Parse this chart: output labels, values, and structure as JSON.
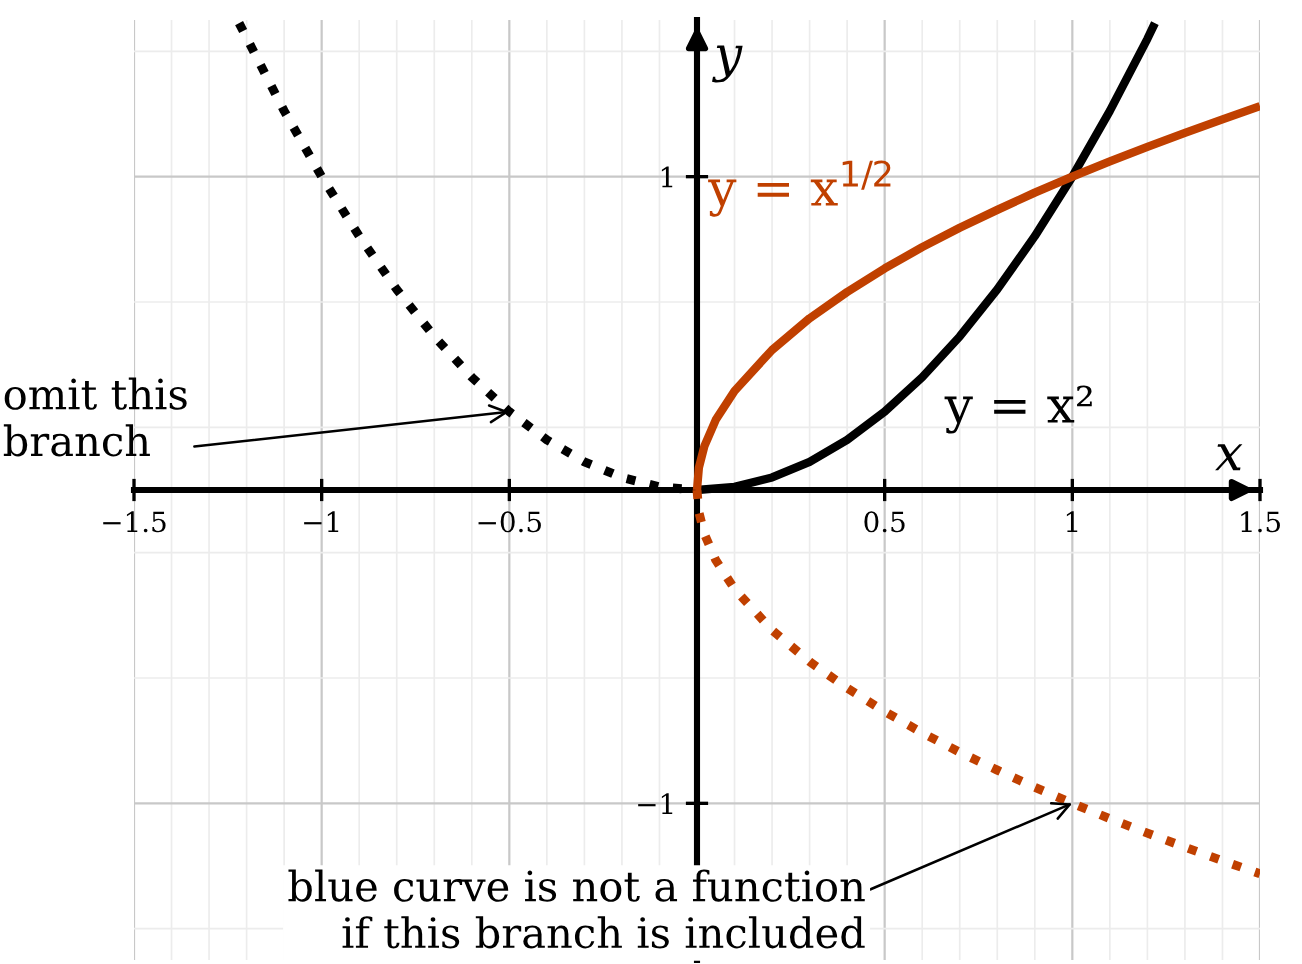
{
  "chart_data": {
    "type": "line",
    "xlabel": "x",
    "ylabel": "y",
    "xlim": [
      -1.5,
      1.5
    ],
    "ylim": [
      -1.5,
      1.5
    ],
    "xticks": [
      {
        "value": -1.5,
        "label": "−1.5"
      },
      {
        "value": -1,
        "label": "−1"
      },
      {
        "value": -0.5,
        "label": "−0.5"
      },
      0.5,
      1,
      1.5
    ],
    "yticks": [
      {
        "value": -1,
        "label": "−1"
      },
      1
    ],
    "grid": true,
    "marker": "none",
    "series": [
      {
        "color": "#000000",
        "line_style": "solid",
        "x": [
          0,
          0.1,
          0.2,
          0.3,
          0.4,
          0.5,
          0.6,
          0.7,
          0.8,
          0.9,
          1,
          1.1,
          1.2,
          1.22
        ],
        "values": [
          0,
          0.01,
          0.04,
          0.09,
          0.16,
          0.25,
          0.36,
          0.49,
          0.64,
          0.81,
          1,
          1.21,
          1.44,
          1.49
        ]
      },
      {
        "color": "#000000",
        "line_style": "dotted",
        "x": [
          -1.22,
          -1.1,
          -1,
          -0.9,
          -0.8,
          -0.7,
          -0.6,
          -0.5,
          -0.4,
          -0.3,
          -0.2,
          -0.1,
          0
        ],
        "values": [
          1.49,
          1.21,
          1,
          0.81,
          0.64,
          0.49,
          0.36,
          0.25,
          0.16,
          0.09,
          0.04,
          0.01,
          0
        ]
      },
      {
        "color": "#c04000",
        "line_style": "solid",
        "x": [
          0,
          0.005,
          0.02,
          0.05,
          0.1,
          0.2,
          0.3,
          0.4,
          0.5,
          0.6,
          0.7,
          0.8,
          0.9,
          1,
          1.1,
          1.2,
          1.3,
          1.4,
          1.5
        ],
        "values": [
          0,
          0.071,
          0.141,
          0.224,
          0.316,
          0.447,
          0.548,
          0.632,
          0.707,
          0.775,
          0.837,
          0.894,
          0.949,
          1,
          1.049,
          1.095,
          1.14,
          1.183,
          1.225
        ]
      },
      {
        "color": "#c04000",
        "line_style": "dotted",
        "x": [
          0,
          0.005,
          0.02,
          0.05,
          0.1,
          0.2,
          0.3,
          0.4,
          0.5,
          0.6,
          0.7,
          0.8,
          0.9,
          1,
          1.1,
          1.2,
          1.3,
          1.4,
          1.5
        ],
        "values": [
          0,
          -0.071,
          -0.141,
          -0.224,
          -0.316,
          -0.447,
          -0.548,
          -0.632,
          -0.707,
          -0.775,
          -0.837,
          -0.894,
          -0.949,
          -1,
          -1.049,
          -1.095,
          -1.14,
          -1.183,
          -1.225
        ]
      }
    ],
    "annotations": [
      "y = x$^{1/2}$",
      "y = x²",
      {
        "text": "omit this\nbranch",
        "x": -0.5,
        "y": 0.25
      },
      {
        "text": "blue curve is not a function\nif this branch is included",
        "x": 1,
        "y": -1
      }
    ]
  }
}
